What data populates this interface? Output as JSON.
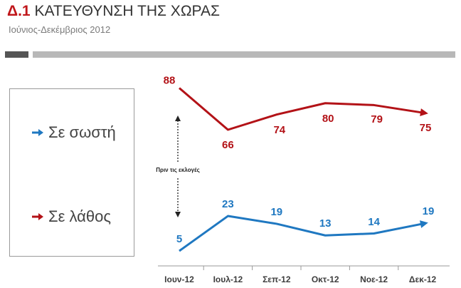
{
  "header": {
    "title_num": "Δ.1",
    "title_text": "ΚΑΤΕΥΘΥΝΣΗ ΤΗΣ ΧΩΡΑΣ",
    "subtitle": "Ιούνιος-Δεκέμβριος 2012"
  },
  "legend": {
    "items": [
      {
        "label": "Σε σωστή",
        "color": "#1f78c1"
      },
      {
        "label": "Σε λάθος",
        "color": "#b31217"
      }
    ]
  },
  "annotation": "Πριν τις εκλογές",
  "chart_data": {
    "type": "line",
    "categories": [
      "Ιουν-12",
      "Ιουλ-12",
      "Σεπ-12",
      "Οκτ-12",
      "Νοε-12",
      "Δεκ-12"
    ],
    "series": [
      {
        "name": "Σε λάθος",
        "color": "#b31217",
        "values": [
          88,
          66,
          74,
          80,
          79,
          75
        ]
      },
      {
        "name": "Σε σωστή",
        "color": "#1f78c1",
        "values": [
          5,
          23,
          19,
          13,
          14,
          19
        ]
      }
    ],
    "ylim": [
      0,
      100
    ],
    "grid": false,
    "legend_position": "left"
  }
}
